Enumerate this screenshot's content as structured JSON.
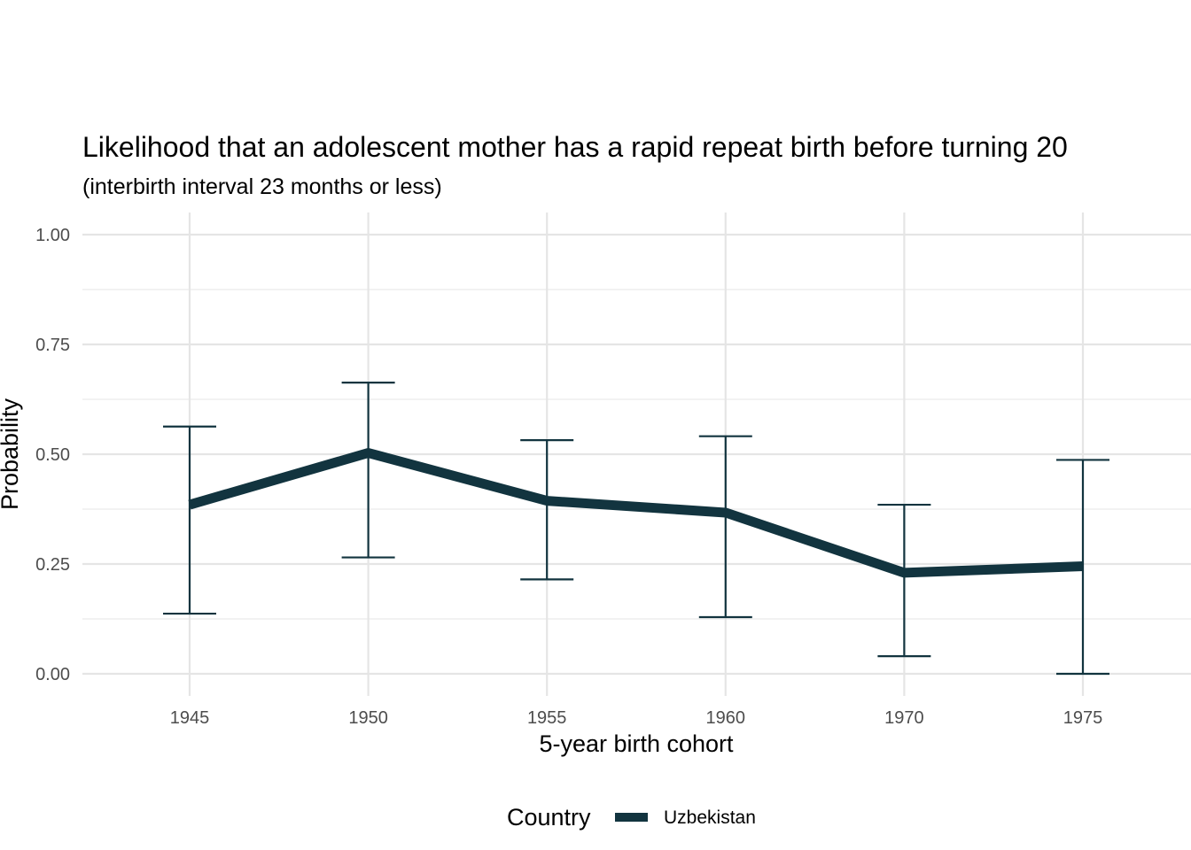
{
  "chart_data": {
    "type": "line",
    "title": "Likelihood that an adolescent mother has a rapid repeat birth before turning 20",
    "subtitle": "(interbirth interval 23 months or less)",
    "xlabel": "5-year birth cohort",
    "ylabel": "Probability",
    "categories": [
      "1945",
      "1950",
      "1955",
      "1960",
      "1970",
      "1975"
    ],
    "ylim": [
      0,
      1
    ],
    "yticks": [
      "0.00",
      "0.25",
      "0.50",
      "0.75",
      "1.00"
    ],
    "grid": true,
    "legend": {
      "title": "Country",
      "position": "bottom"
    },
    "series": [
      {
        "name": "Uzbekistan",
        "color": "#12343f",
        "values": [
          0.385,
          0.503,
          0.394,
          0.367,
          0.23,
          0.245
        ],
        "lower": [
          0.137,
          0.265,
          0.215,
          0.129,
          0.04,
          0.0
        ],
        "upper": [
          0.563,
          0.663,
          0.532,
          0.541,
          0.385,
          0.487
        ]
      }
    ]
  }
}
